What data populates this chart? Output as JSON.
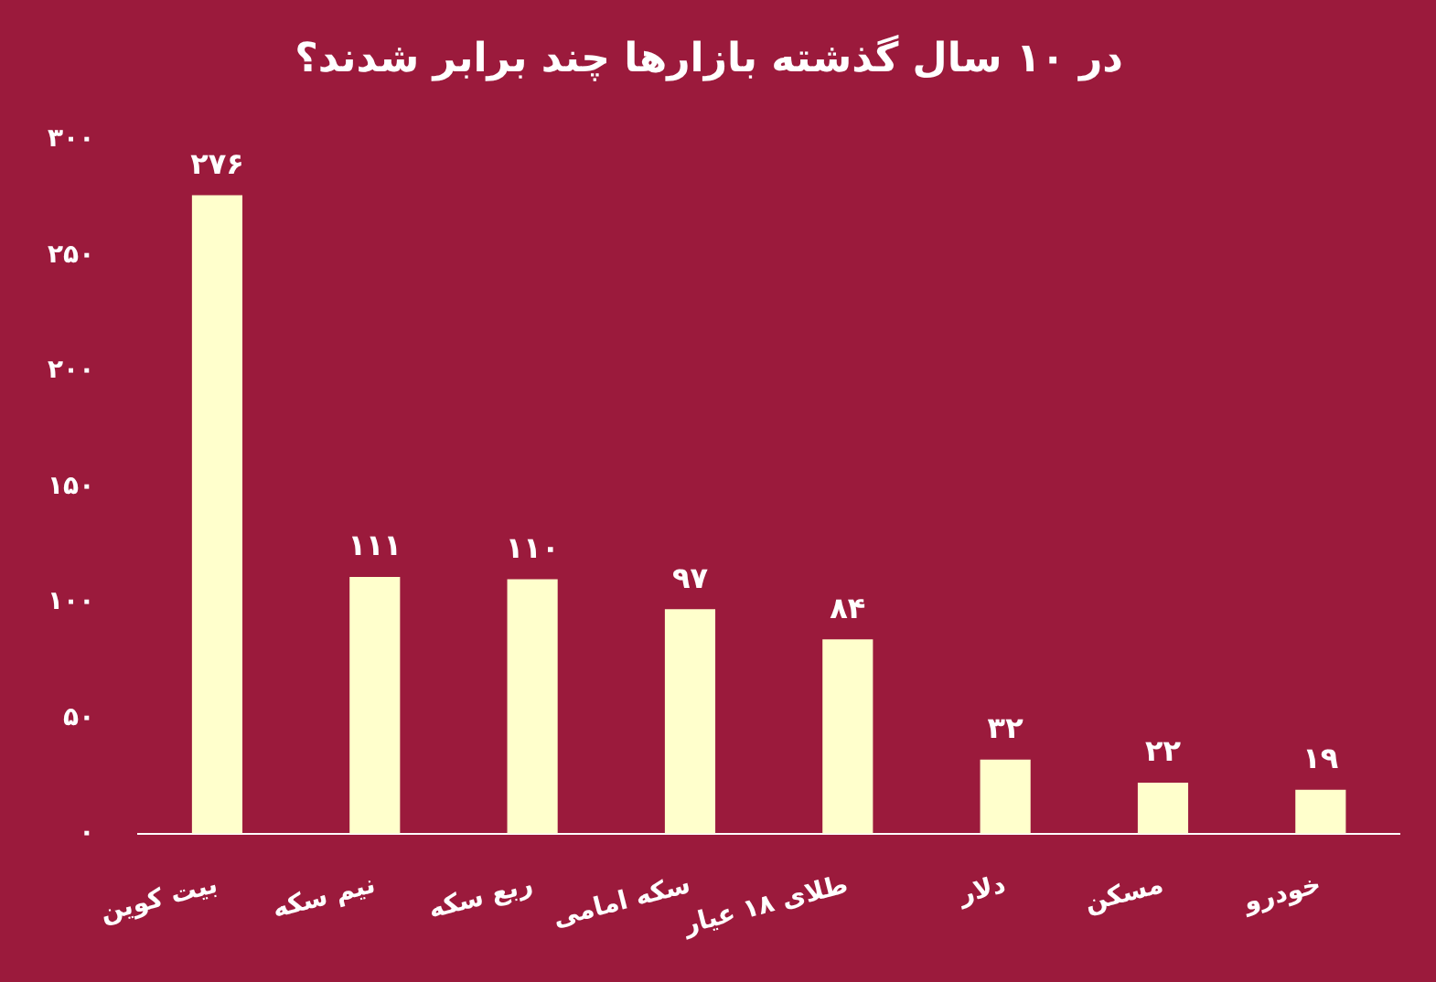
{
  "chart_data": {
    "type": "bar",
    "title": "در ۱۰ سال گذشته بازارها چند برابر شدند؟",
    "categories": [
      "بیت کوین",
      "نیم سکه",
      "ربع سکه",
      "سکه امامی",
      "طلای ۱۸ عیار",
      "دلار",
      "مسکن",
      "خودرو"
    ],
    "values": [
      276,
      111,
      110,
      97,
      84,
      32,
      22,
      19
    ],
    "value_labels": [
      "۲۷۶",
      "۱۱۱",
      "۱۱۰",
      "۹۷",
      "۸۴",
      "۳۲",
      "۲۲",
      "۱۹"
    ],
    "color": "#ffffcc",
    "ylim": [
      0,
      300
    ],
    "yticks": [
      {
        "value": 0,
        "label": "۰"
      },
      {
        "value": 50,
        "label": "۵۰"
      },
      {
        "value": 100,
        "label": "۱۰۰"
      },
      {
        "value": 150,
        "label": "۱۵۰"
      },
      {
        "value": 200,
        "label": "۲۰۰"
      },
      {
        "value": 250,
        "label": "۲۵۰"
      },
      {
        "value": 300,
        "label": "۳۰۰"
      }
    ],
    "grid": false,
    "legend": false
  }
}
